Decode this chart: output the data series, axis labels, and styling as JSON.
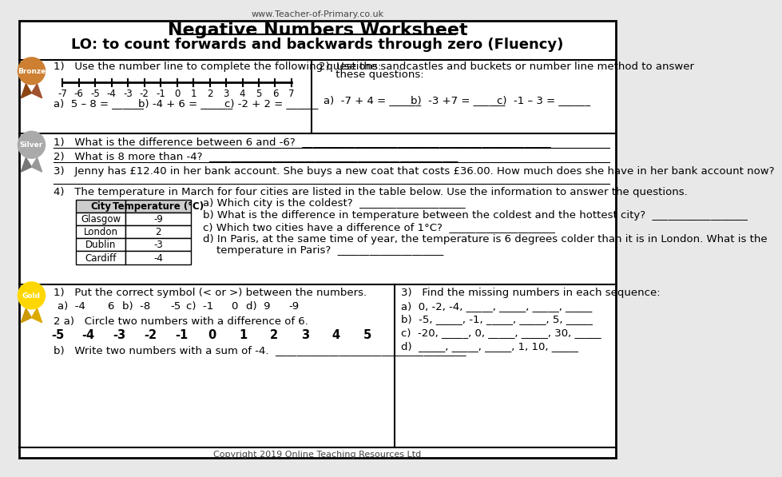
{
  "title": "Negative Numbers Worksheet",
  "lo": "LO: to count forwards and backwards through zero (Fluency)",
  "website": "www.Teacher-of-Primary.co.uk",
  "copyright": "Copyright 2019 Online Teaching Resources Ltd",
  "bg_color": "#e8e8e8",
  "worksheet_bg": "#ffffff",
  "border_color": "#000000",
  "bronze_color": "#cd7f32",
  "silver_color": "#aaaaaa",
  "gold_color": "#ffd700",
  "bronze_label": "Bronze",
  "silver_label": "Silver",
  "gold_label": "Gold",
  "number_line_nums": [
    -7,
    -6,
    -5,
    -4,
    -3,
    -2,
    -1,
    0,
    1,
    2,
    3,
    4,
    5,
    6,
    7
  ],
  "bronze_q1_text": "1)   Use the number line to complete the following questions:",
  "bronze_q1a": "a)  5 – 8 = ______",
  "bronze_q1b": "b) -4 + 6 = ______",
  "bronze_q1c": "c) -2 + 2 = ______",
  "bronze_q2_line1": "2)  Use the sandcastles and buckets or number line method to answer",
  "bronze_q2_line2": "     these questions:",
  "bronze_q2a": "a)  -7 + 4 = ______",
  "bronze_q2b": "b)  -3 +7 = ______",
  "bronze_q2c": "c)  -1 – 3 = ______",
  "silver_q1": "1)   What is the difference between 6 and -6?  _______________________________________________",
  "silver_q2": "2)   What is 8 more than -4?  _______________________________________________",
  "silver_q3": "3)   Jenny has £12.40 in her bank account. She buys a new coat that costs £36.00. How much does she have in her bank account now?",
  "silver_q4_intro": "4)   The temperature in March for four cities are listed in the table below. Use the information to answer the questions.",
  "city_headers": [
    "City",
    "Temperature (°C)"
  ],
  "cities": [
    "Glasgow",
    "London",
    "Dublin",
    "Cardiff"
  ],
  "temps": [
    "-9",
    "2",
    "-3",
    "-4"
  ],
  "silver_q4a": "a) Which city is the coldest?  ____________________",
  "silver_q4b": "b) What is the difference in temperature between the coldest and the hottest city?  __________________",
  "silver_q4c": "c) Which two cities have a difference of 1°C?  ____________________",
  "silver_q4d_line1": "d) In Paris, at the same time of year, the temperature is 6 degrees colder than it is in London. What is the",
  "silver_q4d_line2": "    temperature in Paris?  ____________________",
  "gold_q1_text": "1)   Put the correct symbol (< or >) between the numbers.",
  "gold_q2a_text": "2 a)   Circle two numbers with a difference of 6.",
  "gold_nums": [
    "-5",
    "-4",
    "-3",
    "-2",
    "-1",
    "0",
    "1",
    "2",
    "3",
    "4",
    "5"
  ],
  "gold_q2b": "b)   Write two numbers with a sum of -4.  ____________________________________",
  "gold_q3_text": "3)   Find the missing numbers in each sequence:",
  "gold_q3a": "a)  0, -2, -4, _____, _____, _____, _____",
  "gold_q3b": "b)  -5, _____, -1, _____, _____, 5, _____",
  "gold_q3c": "c)  -20, _____, 0, _____, _____, 30, _____",
  "gold_q3d": "d)  _____, _____, _____, 1, 10, _____"
}
